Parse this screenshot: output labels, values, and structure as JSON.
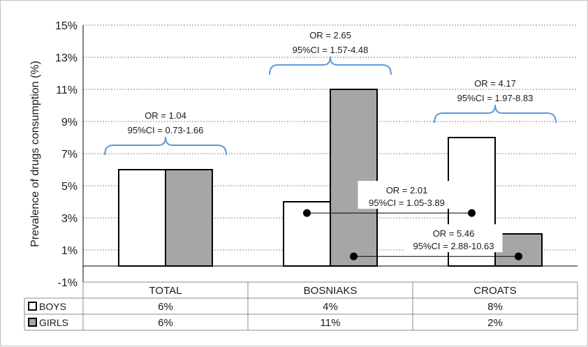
{
  "chart_data": {
    "type": "bar",
    "ylabel": "Prevalence of drugs consumption (%)",
    "ylim": [
      -1,
      15
    ],
    "yticks": [
      -1,
      1,
      3,
      5,
      7,
      9,
      11,
      13,
      15
    ],
    "ytick_labels": [
      "-1%",
      "1%",
      "3%",
      "5%",
      "7%",
      "9%",
      "11%",
      "13%",
      "15%"
    ],
    "grid": true,
    "categories": [
      "TOTAL",
      "BOSNIAKS",
      "CROATS"
    ],
    "series": [
      {
        "name": "BOYS",
        "values": [
          6,
          4,
          8
        ],
        "labels": [
          "6%",
          "4%",
          "8%"
        ],
        "color": "#ffffff"
      },
      {
        "name": "GIRLS",
        "values": [
          6,
          11,
          2
        ],
        "labels": [
          "6%",
          "11%",
          "2%"
        ],
        "color": "#a6a6a6"
      }
    ],
    "annotations": [
      {
        "or": "OR = 1.04",
        "ci": "95%CI = 0.73-1.66"
      },
      {
        "or": "OR = 2.65",
        "ci": "95%CI = 1.57-4.48"
      },
      {
        "or": "OR = 4.17",
        "ci": "95%CI = 1.97-8.83"
      }
    ],
    "connectors": [
      {
        "or": "OR =  2.01",
        "ci": "95%CI =  1.05-3.89",
        "y": 3.3
      },
      {
        "or": "OR = 5.46",
        "ci": "95%CI = 2.88-10.63",
        "y": 0.6
      }
    ],
    "colors": {
      "bracket": "#5b9bd5",
      "grid": "#8c8c8c",
      "bar_edge": "#000000"
    }
  }
}
